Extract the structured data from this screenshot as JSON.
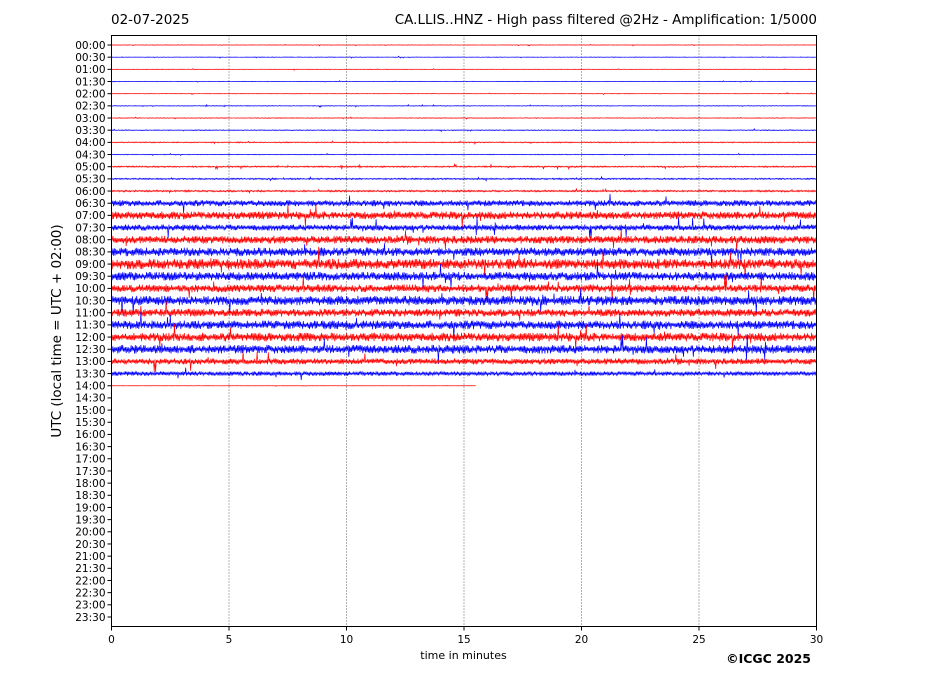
{
  "header": {
    "date": "02-07-2025",
    "title": "CA.LLIS..HNZ - High pass filtered @2Hz - Amplification: 1/5000"
  },
  "credit": "©ICGC 2025",
  "chart_data": {
    "type": "line",
    "title": "CA.LLIS..HNZ - High pass filtered @2Hz - Amplification: 1/5000",
    "xlabel": "time in minutes",
    "ylabel": "UTC (local time = UTC + 02:00)",
    "xlim": [
      0,
      30
    ],
    "x_ticks": [
      0,
      5,
      10,
      15,
      20,
      25,
      30
    ],
    "y_ticks": [
      "00:00",
      "00:30",
      "01:00",
      "01:30",
      "02:00",
      "02:30",
      "03:00",
      "03:30",
      "04:00",
      "04:30",
      "05:00",
      "05:30",
      "06:00",
      "06:30",
      "07:00",
      "07:30",
      "08:00",
      "08:30",
      "09:00",
      "09:30",
      "10:00",
      "10:30",
      "11:00",
      "11:30",
      "12:00",
      "12:30",
      "13:00",
      "13:30",
      "14:00",
      "14:30",
      "15:00",
      "15:30",
      "16:00",
      "16:30",
      "17:00",
      "17:30",
      "18:00",
      "18:30",
      "19:00",
      "19:30",
      "20:00",
      "20:30",
      "21:00",
      "21:30",
      "22:00",
      "22:30",
      "23:00",
      "23:30"
    ],
    "trace_colors": [
      "#ff0000",
      "#0000ff"
    ],
    "grid": "vertical dotted lines at 5-minute intervals",
    "series": [
      {
        "start": "00:00",
        "level": 0.03,
        "end_minute": 30
      },
      {
        "start": "00:30",
        "level": 0.03,
        "end_minute": 30
      },
      {
        "start": "01:00",
        "level": 0.03,
        "end_minute": 30
      },
      {
        "start": "01:30",
        "level": 0.03,
        "end_minute": 30
      },
      {
        "start": "02:00",
        "level": 0.03,
        "end_minute": 30
      },
      {
        "start": "02:30",
        "level": 0.04,
        "end_minute": 30
      },
      {
        "start": "03:00",
        "level": 0.04,
        "end_minute": 30
      },
      {
        "start": "03:30",
        "level": 0.05,
        "end_minute": 30
      },
      {
        "start": "04:00",
        "level": 0.06,
        "end_minute": 30
      },
      {
        "start": "04:30",
        "level": 0.04,
        "end_minute": 30
      },
      {
        "start": "05:00",
        "level": 0.08,
        "end_minute": 30
      },
      {
        "start": "05:30",
        "level": 0.08,
        "end_minute": 30
      },
      {
        "start": "06:00",
        "level": 0.1,
        "end_minute": 30
      },
      {
        "start": "06:30",
        "level": 0.35,
        "end_minute": 30
      },
      {
        "start": "07:00",
        "level": 0.45,
        "end_minute": 30
      },
      {
        "start": "07:30",
        "level": 0.35,
        "end_minute": 30
      },
      {
        "start": "08:00",
        "level": 0.45,
        "end_minute": 30
      },
      {
        "start": "08:30",
        "level": 0.5,
        "end_minute": 30
      },
      {
        "start": "09:00",
        "level": 0.6,
        "end_minute": 30
      },
      {
        "start": "09:30",
        "level": 0.5,
        "end_minute": 30
      },
      {
        "start": "10:00",
        "level": 0.45,
        "end_minute": 30
      },
      {
        "start": "10:30",
        "level": 0.55,
        "end_minute": 30
      },
      {
        "start": "11:00",
        "level": 0.45,
        "end_minute": 30
      },
      {
        "start": "11:30",
        "level": 0.5,
        "end_minute": 30
      },
      {
        "start": "12:00",
        "level": 0.5,
        "end_minute": 30
      },
      {
        "start": "12:30",
        "level": 0.5,
        "end_minute": 30
      },
      {
        "start": "13:00",
        "level": 0.35,
        "end_minute": 30
      },
      {
        "start": "13:30",
        "level": 0.25,
        "end_minute": 30
      },
      {
        "start": "14:00",
        "level": 0.02,
        "end_minute": 15.5
      }
    ]
  }
}
